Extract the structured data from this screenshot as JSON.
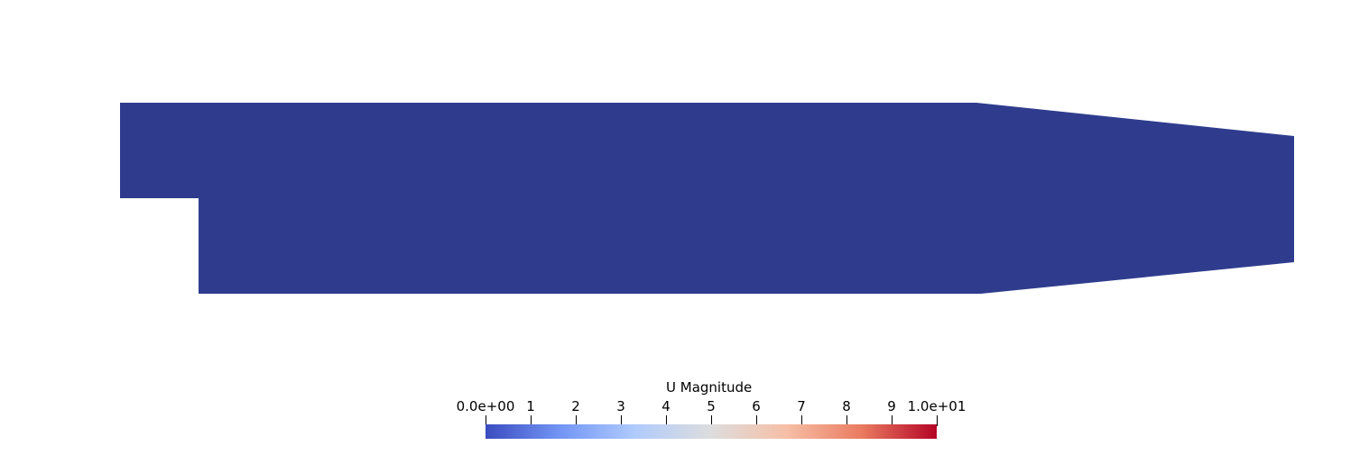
{
  "view": {
    "background_color": "#ffffff",
    "geometry_fill_color": "#2f3c8e"
  },
  "legend": {
    "title": "U Magnitude",
    "range": [
      0,
      10
    ],
    "ticks": [
      {
        "value": 0,
        "label": "0.0e+00"
      },
      {
        "value": 1,
        "label": "1"
      },
      {
        "value": 2,
        "label": "2"
      },
      {
        "value": 3,
        "label": "3"
      },
      {
        "value": 4,
        "label": "4"
      },
      {
        "value": 5,
        "label": "5"
      },
      {
        "value": 6,
        "label": "6"
      },
      {
        "value": 7,
        "label": "7"
      },
      {
        "value": 8,
        "label": "8"
      },
      {
        "value": 9,
        "label": "9"
      },
      {
        "value": 10,
        "label": "1.0e+01"
      }
    ],
    "colormap": [
      "#3b4cc0",
      "#7396f5",
      "#b0cbfc",
      "#dddddd",
      "#f6bfa6",
      "#ea7b60",
      "#b40426"
    ]
  }
}
